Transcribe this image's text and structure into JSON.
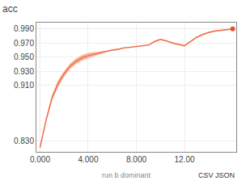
{
  "chart_data": {
    "type": "line",
    "title": "acc",
    "x": [
      0,
      0.5,
      1,
      1.5,
      2,
      2.5,
      3,
      3.5,
      4,
      4.5,
      5,
      5.5,
      6,
      6.5,
      7,
      7.5,
      8,
      8.5,
      9,
      9.5,
      10,
      10.5,
      11,
      11.5,
      12,
      12.5,
      13,
      13.5,
      14,
      14.5,
      15,
      15.5,
      16
    ],
    "series": [
      {
        "type": "band",
        "color": "#f9b89a",
        "upper": [
          0.821,
          0.863,
          0.896,
          0.917,
          0.93,
          0.941,
          0.948,
          0.953,
          0.956,
          0.957,
          0.958,
          0.959,
          0.961,
          0.962,
          0.963,
          0.964,
          0.965,
          0.966,
          0.967,
          0.973,
          0.976,
          0.974,
          0.971,
          0.969,
          0.967,
          0.973,
          0.979,
          0.983,
          0.986,
          0.988,
          0.989,
          0.99,
          0.991
        ],
        "lower": [
          0.821,
          0.857,
          0.888,
          0.907,
          0.922,
          0.933,
          0.94,
          0.945,
          0.948,
          0.951,
          0.954,
          0.957,
          0.959,
          0.96,
          0.963,
          0.964,
          0.965,
          0.966,
          0.967,
          0.971,
          0.974,
          0.972,
          0.969,
          0.967,
          0.965,
          0.971,
          0.977,
          0.981,
          0.984,
          0.986,
          0.987,
          0.988,
          0.989
        ]
      },
      {
        "type": "line",
        "color": "#f07050",
        "values": [
          0.821,
          0.86,
          0.892,
          0.912,
          0.926,
          0.937,
          0.944,
          0.949,
          0.952,
          0.954,
          0.956,
          0.958,
          0.96,
          0.961,
          0.963,
          0.964,
          0.965,
          0.966,
          0.967,
          0.972,
          0.975,
          0.973,
          0.97,
          0.968,
          0.966,
          0.972,
          0.978,
          0.982,
          0.985,
          0.987,
          0.988,
          0.989,
          0.99
        ]
      },
      {
        "type": "scatter",
        "color": "#e85030",
        "x": [
          16
        ],
        "values": [
          0.99
        ]
      }
    ],
    "vlines": [
      {
        "x": 0,
        "color": "#aaaaaa"
      }
    ],
    "xlim": [
      -0.3,
      16.3
    ],
    "ylim": [
      0.815,
      0.999
    ],
    "xticks": [
      {
        "value": 0,
        "label": "0.000"
      },
      {
        "value": 4,
        "label": "4.000"
      },
      {
        "value": 8,
        "label": "8.000"
      },
      {
        "value": 12,
        "label": "12.00"
      }
    ],
    "yticks": [
      {
        "value": 0.83,
        "label": "0.830"
      },
      {
        "value": 0.91,
        "label": "0.910"
      },
      {
        "value": 0.93,
        "label": "0.930"
      },
      {
        "value": 0.95,
        "label": "0.950"
      },
      {
        "value": 0.97,
        "label": "0.970"
      },
      {
        "value": 0.99,
        "label": "0.990"
      }
    ],
    "grid": true,
    "annotations": [
      "run b dominant",
      "CSV JSON"
    ]
  }
}
